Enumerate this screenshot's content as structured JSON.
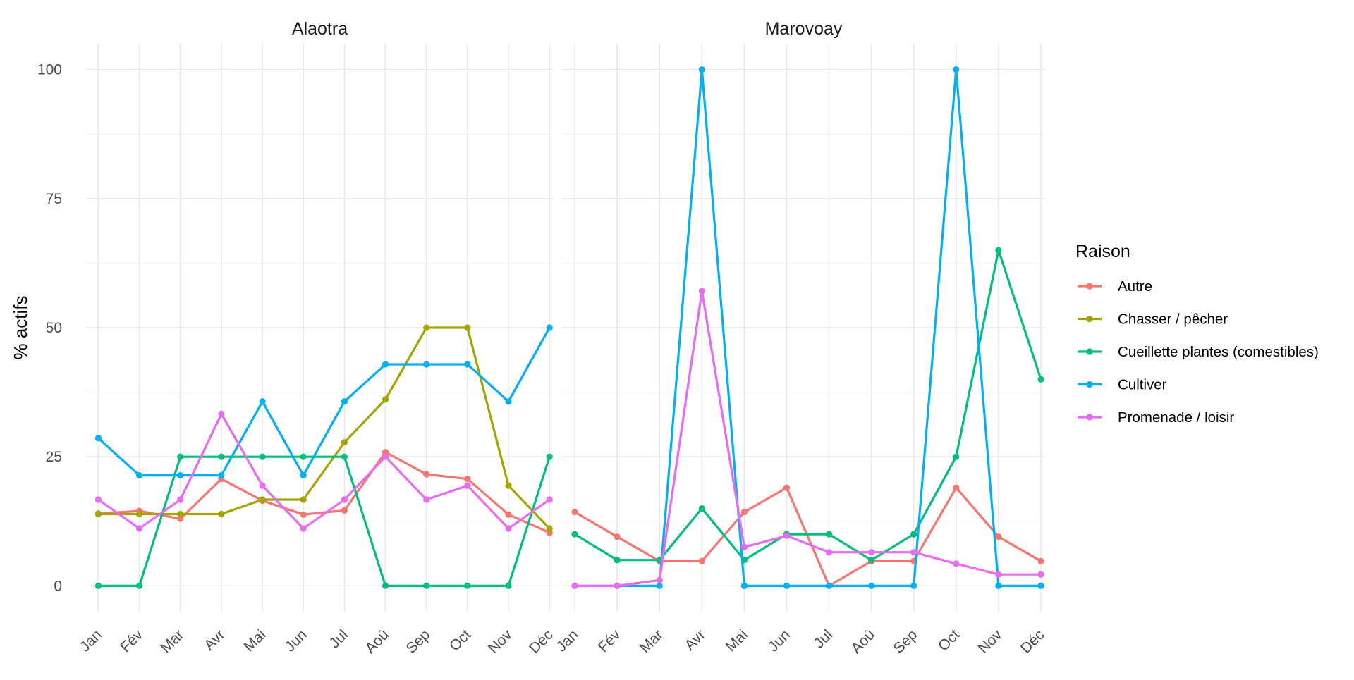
{
  "chart_data": {
    "type": "line",
    "ylabel": "% actifs",
    "ylim": [
      -5,
      105
    ],
    "yticks": [
      0,
      25,
      50,
      75,
      100
    ],
    "grid": true,
    "months": [
      "Jan",
      "Fév",
      "Mar",
      "Avr",
      "Mai",
      "Jun",
      "Jul",
      "Aoû",
      "Sep",
      "Oct",
      "Nov",
      "Déc"
    ],
    "legend": {
      "title": "Raison",
      "position": "right"
    },
    "series_styles": [
      {
        "name": "Autre",
        "color": "#F8766D"
      },
      {
        "name": "Chasser / pêcher",
        "color": "#A3A500"
      },
      {
        "name": "Cueillette plantes (comestibles)",
        "color": "#00BF7D"
      },
      {
        "name": "Cultiver",
        "color": "#00B0F6"
      },
      {
        "name": "Promenade / loisir",
        "color": "#E76BF3"
      }
    ],
    "panels": [
      {
        "title": "Alaotra",
        "series": [
          {
            "name": "Autre",
            "values": [
              14,
              14.5,
              13,
              20.7,
              16.5,
              13.8,
              14.6,
              25.9,
              21.6,
              20.7,
              13.8,
              10.3
            ]
          },
          {
            "name": "Chasser / pêcher",
            "values": [
              13.9,
              13.9,
              13.9,
              13.9,
              16.7,
              16.7,
              27.8,
              36.1,
              50,
              50,
              19.4,
              11.1
            ]
          },
          {
            "name": "Cueillette plantes (comestibles)",
            "values": [
              0,
              0,
              25,
              25,
              25,
              25,
              25,
              0,
              0,
              0,
              0,
              25
            ]
          },
          {
            "name": "Cultiver",
            "values": [
              28.6,
              21.4,
              21.4,
              21.4,
              35.7,
              21.4,
              35.7,
              42.9,
              42.9,
              42.9,
              35.7,
              50
            ]
          },
          {
            "name": "Promenade / loisir",
            "values": [
              16.7,
              11.1,
              16.7,
              33.3,
              19.4,
              11.1,
              16.7,
              25,
              16.7,
              19.4,
              11.1,
              16.7
            ]
          }
        ]
      },
      {
        "title": "Marovoay",
        "series": [
          {
            "name": "Autre",
            "values": [
              14.3,
              9.5,
              4.8,
              4.8,
              14.3,
              19,
              0,
              4.8,
              4.8,
              19,
              9.5,
              4.8
            ]
          },
          {
            "name": "Chasser / pêcher",
            "values": []
          },
          {
            "name": "Cueillette plantes (comestibles)",
            "values": [
              10,
              5,
              5,
              15,
              5,
              10,
              10,
              5,
              10,
              25,
              65,
              40
            ]
          },
          {
            "name": "Cultiver",
            "values": [
              0,
              0,
              0,
              100,
              0,
              0,
              0,
              0,
              0,
              100,
              0,
              0
            ]
          },
          {
            "name": "Promenade / loisir",
            "values": [
              0,
              0,
              1.1,
              57.1,
              7.5,
              9.7,
              6.5,
              6.5,
              6.5,
              4.3,
              2.2,
              2.2
            ]
          }
        ]
      }
    ]
  }
}
